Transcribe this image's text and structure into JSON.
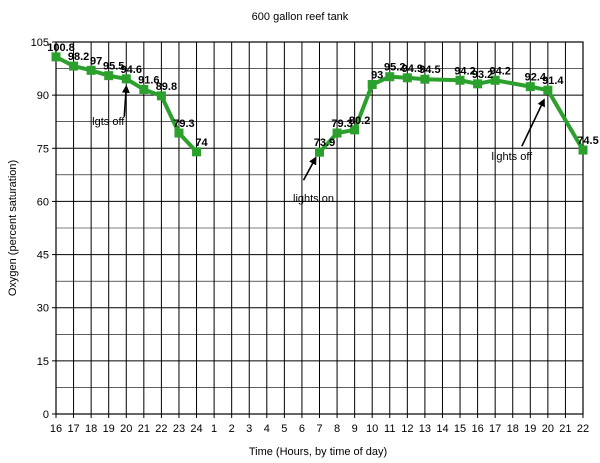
{
  "chart_data": {
    "type": "line",
    "title": "600 gallon reef tank",
    "xlabel": "Time (Hours, by time of day)",
    "ylabel": "Oxygen (percent saturation)",
    "ylim": [
      0,
      105
    ],
    "yticks": [
      0,
      15,
      30,
      45,
      60,
      75,
      90,
      105
    ],
    "grid": true,
    "x_tick_labels": [
      "16",
      "17",
      "18",
      "19",
      "20",
      "21",
      "22",
      "23",
      "24",
      "1",
      "2",
      "3",
      "4",
      "5",
      "6",
      "7",
      "8",
      "9",
      "10",
      "11",
      "12",
      "13",
      "14",
      "15",
      "16",
      "17",
      "18",
      "19",
      "20",
      "21",
      "22"
    ],
    "series_color": "#2ca02c",
    "series": [
      {
        "segments": [
          [
            {
              "i": 0,
              "y": 100.8,
              "label": "100.8"
            },
            {
              "i": 1,
              "y": 98.2,
              "label": "98.2"
            },
            {
              "i": 2,
              "y": 97,
              "label": "97"
            },
            {
              "i": 3,
              "y": 95.5,
              "label": "95.5"
            },
            {
              "i": 4,
              "y": 94.6,
              "label": "94.6"
            },
            {
              "i": 5,
              "y": 91.6,
              "label": "91.6"
            },
            {
              "i": 6,
              "y": 89.8,
              "label": "89.8"
            },
            {
              "i": 7,
              "y": 79.3,
              "label": "79.3"
            },
            {
              "i": 8,
              "y": 74,
              "label": "74"
            }
          ],
          [
            {
              "i": 15,
              "y": 73.9,
              "label": "73.9"
            },
            {
              "i": 16,
              "y": 79.3,
              "label": "79.3"
            },
            {
              "i": 17,
              "y": 80.2,
              "label": "80.2"
            },
            {
              "i": 18,
              "y": 93,
              "label": "93"
            },
            {
              "i": 19,
              "y": 95.2,
              "label": "95.2"
            },
            {
              "i": 20,
              "y": 94.9,
              "label": "94.9"
            },
            {
              "i": 21,
              "y": 94.5,
              "label": "94.5"
            },
            {
              "i": 23,
              "y": 94.2,
              "label": "94.2"
            },
            {
              "i": 24,
              "y": 93.2,
              "label": "93.2"
            },
            {
              "i": 25,
              "y": 94.2,
              "label": "94.2"
            },
            {
              "i": 27,
              "y": 92.4,
              "label": "92.4"
            },
            {
              "i": 28,
              "y": 91.4,
              "label": "91.4"
            },
            {
              "i": 30,
              "y": 74.5,
              "label": "74.5"
            }
          ]
        ]
      }
    ],
    "annotations": [
      {
        "text": "lgts off",
        "i": 4,
        "y": 94.6
      },
      {
        "text": "lights on",
        "i": 15,
        "y": 73.9
      },
      {
        "text": "lights off",
        "i": 28,
        "y": 91.4
      }
    ]
  }
}
